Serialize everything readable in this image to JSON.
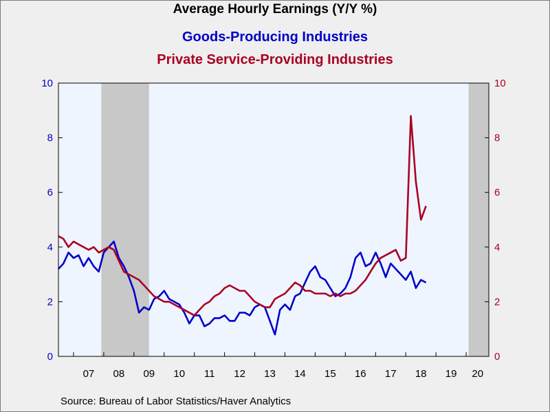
{
  "chart_data": {
    "type": "line",
    "title": "Average Hourly Earnings (Y/Y %)",
    "xlabel": "",
    "ylabel": "",
    "ylim": [
      0,
      10
    ],
    "yticks": [
      0,
      2,
      4,
      6,
      8,
      10
    ],
    "xlim": [
      2006.5,
      2020.75
    ],
    "x_tick_labels": [
      "07",
      "08",
      "09",
      "10",
      "11",
      "12",
      "13",
      "14",
      "15",
      "16",
      "17",
      "18",
      "19",
      "20"
    ],
    "recessions": [
      [
        2007.92,
        2009.5
      ],
      [
        2020.08,
        2020.75
      ]
    ],
    "grid": false,
    "legend": "none",
    "source": "Source:  Bureau of Labor Statistics/Haver Analytics",
    "series": [
      {
        "name": "Goods-Producing Industries",
        "color": "#0000cc",
        "x_start": 2006.5,
        "x_step": 0.1667,
        "values": [
          3.2,
          3.4,
          3.8,
          3.6,
          3.7,
          3.3,
          3.6,
          3.3,
          3.1,
          3.8,
          4.0,
          4.2,
          3.6,
          3.3,
          2.9,
          2.4,
          1.6,
          1.8,
          1.7,
          2.1,
          2.2,
          2.4,
          2.1,
          2.0,
          1.9,
          1.6,
          1.2,
          1.5,
          1.5,
          1.1,
          1.2,
          1.4,
          1.4,
          1.5,
          1.3,
          1.3,
          1.6,
          1.6,
          1.5,
          1.8,
          1.9,
          1.8,
          1.3,
          0.8,
          1.7,
          1.9,
          1.7,
          2.2,
          2.3,
          2.7,
          3.1,
          3.3,
          2.9,
          2.8,
          2.5,
          2.2,
          2.3,
          2.5,
          2.9,
          3.6,
          3.8,
          3.3,
          3.4,
          3.8,
          3.4,
          2.9,
          3.4,
          3.2,
          3.0,
          2.8,
          3.1,
          2.5,
          2.8,
          2.7
        ]
      },
      {
        "name": "Private Service-Providing Industries",
        "color": "#aa0022",
        "x_start": 2006.5,
        "x_step": 0.1667,
        "values": [
          4.4,
          4.3,
          4.0,
          4.2,
          4.1,
          4.0,
          3.9,
          4.0,
          3.8,
          3.9,
          4.0,
          3.9,
          3.5,
          3.1,
          3.0,
          2.9,
          2.8,
          2.6,
          2.4,
          2.2,
          2.1,
          2.0,
          2.0,
          1.9,
          1.8,
          1.7,
          1.6,
          1.5,
          1.7,
          1.9,
          2.0,
          2.2,
          2.3,
          2.5,
          2.6,
          2.5,
          2.4,
          2.4,
          2.2,
          2.0,
          1.9,
          1.8,
          1.8,
          2.1,
          2.2,
          2.3,
          2.5,
          2.7,
          2.6,
          2.4,
          2.4,
          2.3,
          2.3,
          2.3,
          2.2,
          2.3,
          2.2,
          2.3,
          2.3,
          2.4,
          2.6,
          2.8,
          3.1,
          3.4,
          3.6,
          3.7,
          3.8,
          3.9,
          3.5,
          3.6,
          8.8,
          6.4,
          5.0,
          5.5
        ]
      }
    ]
  }
}
